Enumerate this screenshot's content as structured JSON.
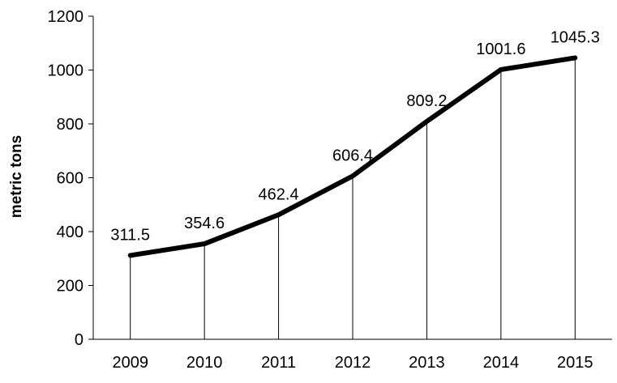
{
  "chart_data": {
    "type": "line",
    "title": "",
    "xlabel": "",
    "ylabel": "metric tons",
    "categories": [
      "2009",
      "2010",
      "2011",
      "2012",
      "2013",
      "2014",
      "2015"
    ],
    "series": [
      {
        "values": [
          311.5,
          354.6,
          462.4,
          606.4,
          809.2,
          1001.6,
          1045.3
        ]
      }
    ],
    "data_labels": [
      "311.5",
      "354.6",
      "462.4",
      "606.4",
      "809.2",
      "1001.6",
      "1045.3"
    ],
    "ylim": [
      0,
      1200
    ],
    "y_ticks": [
      "0",
      "200",
      "400",
      "600",
      "800",
      "1000",
      "1200"
    ],
    "drop_lines": true,
    "grid": false,
    "legend": "none",
    "line_color": "#000000"
  }
}
